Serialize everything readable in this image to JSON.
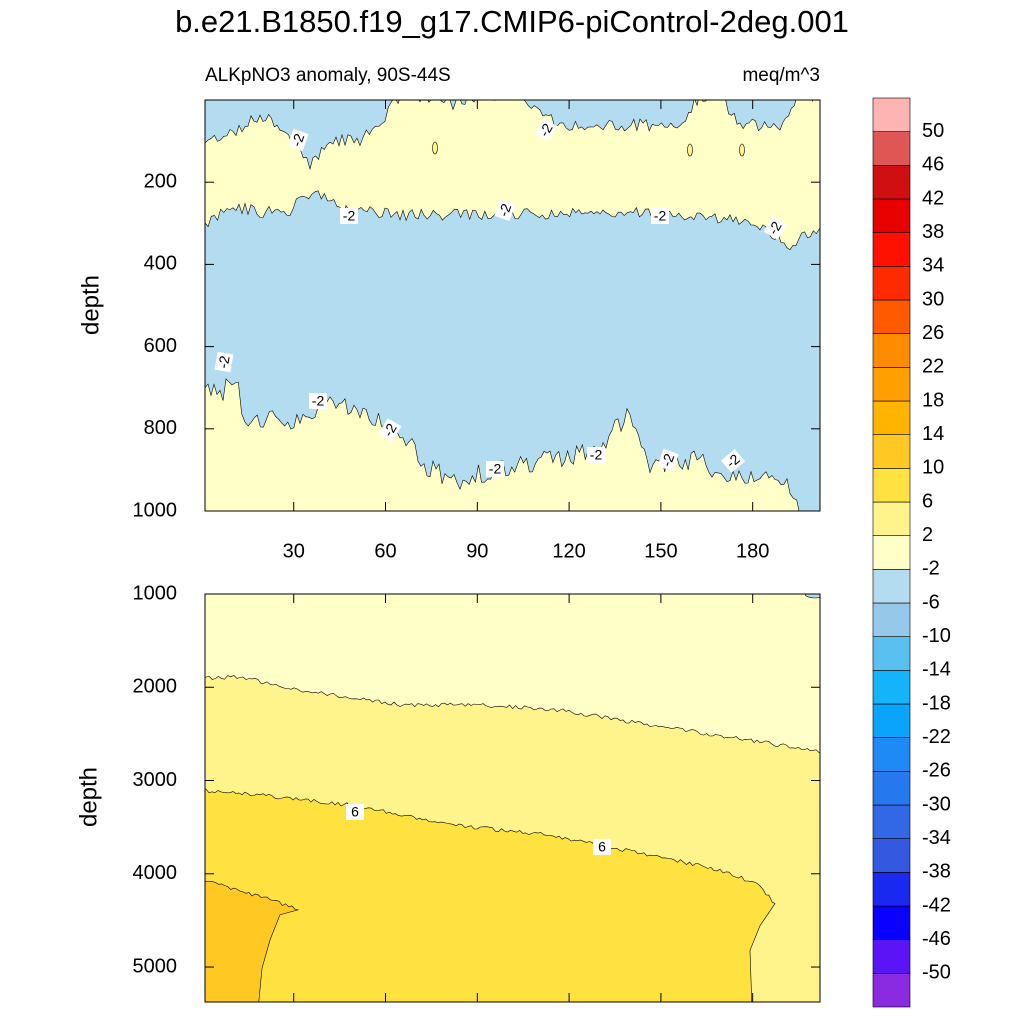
{
  "chart_data": [
    {
      "type": "contour",
      "title": "b.e21.B1850.f19_g17.CMIP6-piControl-2deg.001",
      "subtitle_left": "ALKpNO3 anomaly, 90S-44S",
      "subtitle_right": "meq/m^3",
      "ylabel": "depth",
      "xlim": [
        1,
        202
      ],
      "xticks": [
        30,
        60,
        90,
        120,
        150,
        180
      ],
      "ylim": [
        0,
        1000
      ],
      "yticks": [
        200,
        400,
        600,
        800,
        1000
      ],
      "y_reversed": true,
      "contour_labels": [
        -2,
        -2,
        -2,
        -2,
        -2,
        -2,
        -2,
        -2,
        -2,
        -2,
        -2,
        -2,
        -2
      ],
      "colorbar": {
        "levels": [
          -50,
          -46,
          -42,
          -38,
          -34,
          -30,
          -26,
          -22,
          -18,
          -14,
          -10,
          -6,
          -2,
          2,
          6,
          10,
          14,
          18,
          22,
          26,
          30,
          34,
          38,
          42,
          46,
          50
        ],
        "colors": [
          "#8a2be2",
          "#5a14f5",
          "#0a00ff",
          "#1a28f0",
          "#3458e0",
          "#3268e6",
          "#2678ee",
          "#1e8af5",
          "#0aa4fc",
          "#14b4fa",
          "#5ac0f0",
          "#96c8ea",
          "#b4dcf0",
          "#ffffc8",
          "#fff38c",
          "#ffe140",
          "#ffc822",
          "#ffb400",
          "#ffa000",
          "#ff8c00",
          "#ff5a00",
          "#ff2a00",
          "#ff1000",
          "#e80000",
          "#d01010",
          "#e05555",
          "#ffb4b4"
        ]
      }
    },
    {
      "type": "contour",
      "ylabel": "depth",
      "xlim": [
        1,
        202
      ],
      "ylim": [
        1000,
        5375
      ],
      "yticks": [
        1000,
        2000,
        3000,
        4000,
        5000
      ],
      "y_reversed": true,
      "contour_labels": [
        6,
        6
      ]
    }
  ]
}
